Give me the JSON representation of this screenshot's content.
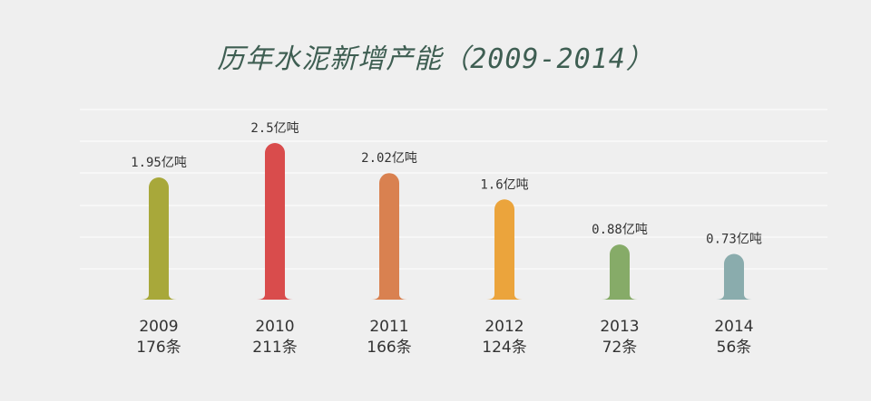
{
  "title": "历年水泥新增产能（2009-2014）",
  "chart_data": {
    "type": "bar",
    "title": "历年水泥新增产能（2009-2014）",
    "xlabel": "",
    "ylabel": "",
    "categories": [
      "2009",
      "2010",
      "2011",
      "2012",
      "2013",
      "2014"
    ],
    "values": [
      1.95,
      2.5,
      2.02,
      1.6,
      0.88,
      0.73
    ],
    "value_labels": [
      "1.95亿吨",
      "2.5亿吨",
      "2.02亿吨",
      "1.6亿吨",
      "0.88亿吨",
      "0.73亿吨"
    ],
    "count_labels": [
      "176条",
      "211条",
      "166条",
      "124条",
      "72条",
      "56条"
    ],
    "colors": [
      "#a8a83a",
      "#d94c4c",
      "#d98150",
      "#eba43c",
      "#86ab68",
      "#8aacad"
    ],
    "ylim": [
      0,
      2.5
    ],
    "grid": true,
    "legend": "none"
  }
}
